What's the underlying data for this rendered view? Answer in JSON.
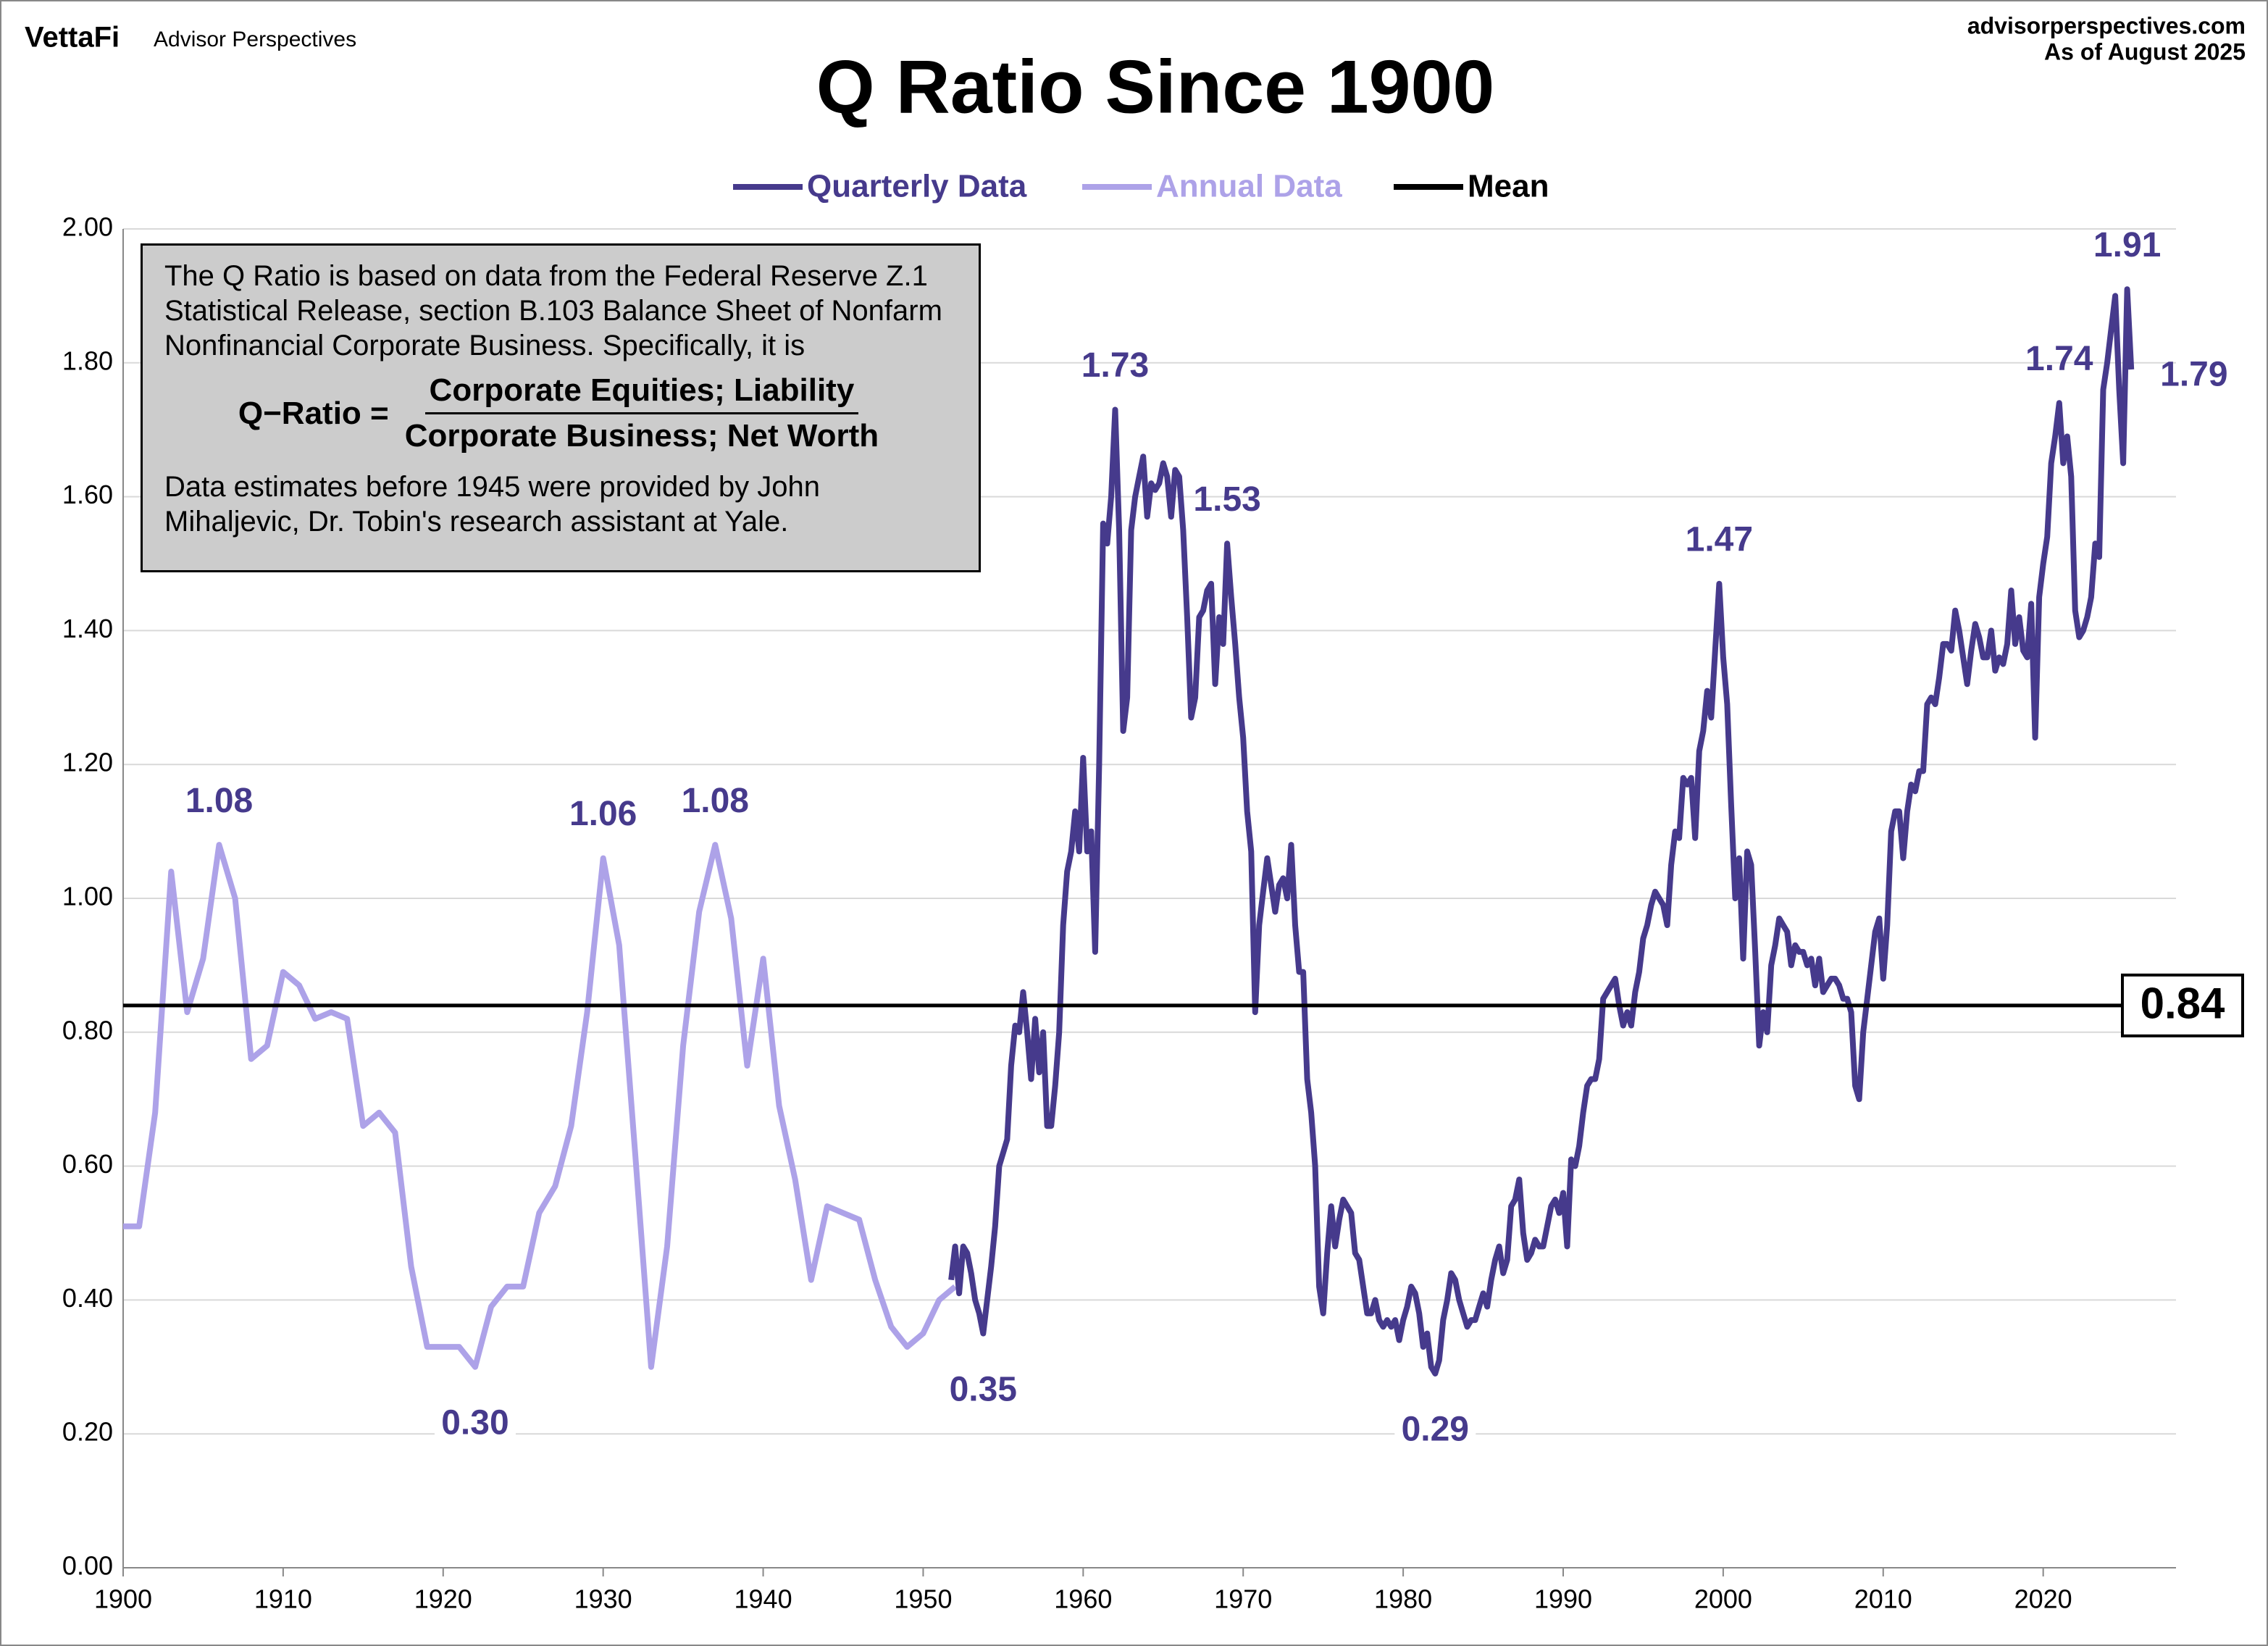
{
  "header": {
    "brand": "VettaFi",
    "brand_sub": "Advisor Perspectives",
    "site": "advisorperspectives.com",
    "as_of": "As of August 2025"
  },
  "info_box": {
    "text1": "The Q Ratio is based on data from the Federal Reserve Z.1 Statistical Release, section B.103 Balance Sheet of Nonfarm Nonfinancial Corporate Business. Specifically, it is",
    "formula_label": "Q−Ratio =",
    "numerator": "Corporate Equities; Liability",
    "denominator": "Corporate Business; Net Worth",
    "text2": "Data estimates before 1945 were provided by John Mihaljevic, Dr. Tobin's research assistant at Yale."
  },
  "chart_data": {
    "type": "line",
    "title": "Q Ratio Since 1900",
    "legend": "top",
    "xlim": [
      1900,
      2028.3
    ],
    "xticks": [
      1900,
      1910,
      1920,
      1930,
      1940,
      1950,
      1960,
      1970,
      1980,
      1990,
      2000,
      2010,
      2020
    ],
    "ylim": [
      0,
      2
    ],
    "yticks": [
      {
        "value": 0,
        "label": "0.00"
      },
      {
        "value": 0.2,
        "label": "0.20"
      },
      {
        "value": 0.4,
        "label": "0.40"
      },
      {
        "value": 0.6,
        "label": "0.60"
      },
      {
        "value": 0.8,
        "label": "0.80"
      },
      {
        "value": 1,
        "label": "1.00"
      },
      {
        "value": 1.2,
        "label": "1.20"
      },
      {
        "value": 1.4,
        "label": "1.40"
      },
      {
        "value": 1.6,
        "label": "1.60"
      },
      {
        "value": 1.8,
        "label": "1.80"
      },
      {
        "value": 2,
        "label": "2.00"
      }
    ],
    "grid": true,
    "series": [
      {
        "name": "Quarterly Data",
        "color": "#463a8c",
        "x": [
          1951.75,
          1952,
          1952.25,
          1952.5,
          1952.75,
          1953,
          1953.25,
          1953.5,
          1953.75,
          1954,
          1954.25,
          1954.5,
          1954.75,
          1955,
          1955.25,
          1955.5,
          1955.75,
          1956,
          1956.25,
          1956.5,
          1956.75,
          1957,
          1957.25,
          1957.5,
          1957.75,
          1958,
          1958.25,
          1958.5,
          1958.75,
          1959,
          1959.25,
          1959.5,
          1959.75,
          1960,
          1960.25,
          1960.5,
          1960.75,
          1961,
          1961.25,
          1961.5,
          1961.75,
          1962,
          1962.25,
          1962.5,
          1962.75,
          1963,
          1963.25,
          1963.5,
          1963.75,
          1964,
          1964.25,
          1964.5,
          1964.75,
          1965,
          1965.25,
          1965.5,
          1965.75,
          1966,
          1966.25,
          1966.5,
          1966.75,
          1967,
          1967.25,
          1967.5,
          1967.75,
          1968,
          1968.25,
          1968.5,
          1968.75,
          1969,
          1969.25,
          1969.5,
          1969.75,
          1970,
          1970.25,
          1970.5,
          1970.75,
          1971,
          1971.25,
          1971.5,
          1971.75,
          1972,
          1972.25,
          1972.5,
          1972.75,
          1973,
          1973.25,
          1973.5,
          1973.75,
          1974,
          1974.25,
          1974.5,
          1974.75,
          1975,
          1975.25,
          1975.5,
          1975.75,
          1976,
          1976.25,
          1976.5,
          1976.75,
          1977,
          1977.25,
          1977.5,
          1977.75,
          1978,
          1978.25,
          1978.5,
          1978.75,
          1979,
          1979.25,
          1979.5,
          1979.75,
          1980,
          1980.25,
          1980.5,
          1980.75,
          1981,
          1981.25,
          1981.5,
          1981.75,
          1982,
          1982.25,
          1982.5,
          1982.75,
          1983,
          1983.25,
          1983.5,
          1983.75,
          1984,
          1984.25,
          1984.5,
          1984.75,
          1985,
          1985.25,
          1985.5,
          1985.75,
          1986,
          1986.25,
          1986.5,
          1986.75,
          1987,
          1987.25,
          1987.5,
          1987.75,
          1988,
          1988.25,
          1988.5,
          1988.75,
          1989,
          1989.25,
          1989.5,
          1989.75,
          1990,
          1990.25,
          1990.5,
          1990.75,
          1991,
          1991.25,
          1991.5,
          1991.75,
          1992,
          1992.25,
          1992.5,
          1992.75,
          1993,
          1993.25,
          1993.5,
          1993.75,
          1994,
          1994.25,
          1994.5,
          1994.75,
          1995,
          1995.25,
          1995.5,
          1995.75,
          1996,
          1996.25,
          1996.5,
          1996.75,
          1997,
          1997.25,
          1997.5,
          1997.75,
          1998,
          1998.25,
          1998.5,
          1998.75,
          1999,
          1999.25,
          1999.5,
          1999.75,
          2000,
          2000.25,
          2000.5,
          2000.75,
          2001,
          2001.25,
          2001.5,
          2001.75,
          2002,
          2002.25,
          2002.5,
          2002.75,
          2003,
          2003.25,
          2003.5,
          2003.75,
          2004,
          2004.25,
          2004.5,
          2004.75,
          2005,
          2005.25,
          2005.5,
          2005.75,
          2006,
          2006.25,
          2006.5,
          2006.75,
          2007,
          2007.25,
          2007.5,
          2007.75,
          2008,
          2008.25,
          2008.5,
          2008.75,
          2009,
          2009.25,
          2009.5,
          2009.75,
          2010,
          2010.25,
          2010.5,
          2010.75,
          2011,
          2011.25,
          2011.5,
          2011.75,
          2012,
          2012.25,
          2012.5,
          2012.75,
          2013,
          2013.25,
          2013.5,
          2013.75,
          2014,
          2014.25,
          2014.5,
          2014.75,
          2015,
          2015.25,
          2015.5,
          2015.75,
          2016,
          2016.25,
          2016.5,
          2016.75,
          2017,
          2017.25,
          2017.5,
          2017.75,
          2018,
          2018.25,
          2018.5,
          2018.75,
          2019,
          2019.25,
          2019.5,
          2019.75,
          2020,
          2020.25,
          2020.5,
          2020.75,
          2021,
          2021.25,
          2021.5,
          2021.75,
          2022,
          2022.25,
          2022.5,
          2022.75,
          2023,
          2023.25,
          2023.5,
          2023.75,
          2024,
          2024.25,
          2024.5,
          2024.75,
          2025,
          2025.25,
          2025.5
        ],
        "values": [
          0.43,
          0.48,
          0.41,
          0.48,
          0.47,
          0.44,
          0.4,
          0.38,
          0.35,
          0.4,
          0.45,
          0.51,
          0.6,
          0.62,
          0.64,
          0.75,
          0.81,
          0.8,
          0.86,
          0.8,
          0.73,
          0.82,
          0.74,
          0.8,
          0.66,
          0.66,
          0.72,
          0.8,
          0.96,
          1.04,
          1.07,
          1.13,
          1.07,
          1.21,
          1.07,
          1.1,
          0.92,
          1.2,
          1.56,
          1.53,
          1.6,
          1.73,
          1.55,
          1.25,
          1.3,
          1.55,
          1.6,
          1.63,
          1.66,
          1.57,
          1.62,
          1.61,
          1.62,
          1.65,
          1.63,
          1.57,
          1.64,
          1.63,
          1.55,
          1.42,
          1.27,
          1.3,
          1.42,
          1.43,
          1.46,
          1.47,
          1.32,
          1.42,
          1.38,
          1.53,
          1.45,
          1.38,
          1.3,
          1.24,
          1.13,
          1.07,
          0.83,
          0.96,
          1.01,
          1.06,
          1.02,
          0.98,
          1.02,
          1.03,
          1.0,
          1.08,
          0.96,
          0.89,
          0.89,
          0.73,
          0.68,
          0.6,
          0.42,
          0.38,
          0.47,
          0.54,
          0.48,
          0.52,
          0.55,
          0.54,
          0.53,
          0.47,
          0.46,
          0.42,
          0.38,
          0.38,
          0.4,
          0.37,
          0.36,
          0.37,
          0.36,
          0.37,
          0.34,
          0.37,
          0.39,
          0.42,
          0.41,
          0.38,
          0.33,
          0.35,
          0.3,
          0.29,
          0.31,
          0.37,
          0.4,
          0.44,
          0.43,
          0.4,
          0.38,
          0.36,
          0.37,
          0.37,
          0.39,
          0.41,
          0.39,
          0.43,
          0.46,
          0.48,
          0.44,
          0.46,
          0.54,
          0.55,
          0.58,
          0.5,
          0.46,
          0.47,
          0.49,
          0.48,
          0.48,
          0.51,
          0.54,
          0.55,
          0.53,
          0.56,
          0.48,
          0.61,
          0.6,
          0.63,
          0.68,
          0.72,
          0.73,
          0.73,
          0.76,
          0.85,
          0.86,
          0.87,
          0.88,
          0.84,
          0.81,
          0.83,
          0.81,
          0.86,
          0.89,
          0.94,
          0.96,
          0.99,
          1.01,
          1.0,
          0.99,
          0.96,
          1.05,
          1.1,
          1.09,
          1.18,
          1.17,
          1.18,
          1.09,
          1.22,
          1.25,
          1.31,
          1.27,
          1.37,
          1.47,
          1.36,
          1.29,
          1.14,
          1.0,
          1.06,
          0.91,
          1.07,
          1.05,
          0.92,
          0.78,
          0.83,
          0.8,
          0.9,
          0.93,
          0.97,
          0.96,
          0.95,
          0.9,
          0.93,
          0.92,
          0.92,
          0.9,
          0.91,
          0.87,
          0.91,
          0.86,
          0.87,
          0.88,
          0.88,
          0.87,
          0.85,
          0.85,
          0.83,
          0.72,
          0.7,
          0.8,
          0.85,
          0.9,
          0.95,
          0.97,
          0.88,
          0.96,
          1.1,
          1.13,
          1.13,
          1.06,
          1.13,
          1.17,
          1.16,
          1.19,
          1.19,
          1.29,
          1.3,
          1.29,
          1.33,
          1.38,
          1.38,
          1.37,
          1.43,
          1.4,
          1.36,
          1.32,
          1.37,
          1.41,
          1.39,
          1.36,
          1.36,
          1.4,
          1.34,
          1.36,
          1.35,
          1.38,
          1.46,
          1.38,
          1.42,
          1.37,
          1.36,
          1.44,
          1.24,
          1.45,
          1.5,
          1.54,
          1.65,
          1.69,
          1.74,
          1.65,
          1.69,
          1.63,
          1.43,
          1.39,
          1.4,
          1.42,
          1.45,
          1.53,
          1.51,
          1.76,
          1.8,
          1.85,
          1.9,
          1.76,
          1.65,
          1.91,
          1.79
        ]
      },
      {
        "name": "Annual Data",
        "color": "#ada2e8",
        "x": [
          1900,
          1901,
          1902,
          1903,
          1904,
          1905,
          1906,
          1907,
          1908,
          1909,
          1910,
          1911,
          1912,
          1913,
          1914,
          1915,
          1916,
          1917,
          1918,
          1919,
          1920,
          1921,
          1922,
          1923,
          1924,
          1925,
          1926,
          1927,
          1928,
          1929,
          1930,
          1931,
          1932,
          1933,
          1934,
          1935,
          1936,
          1937,
          1938,
          1939,
          1940,
          1941,
          1942,
          1943,
          1944,
          1945,
          1946,
          1947,
          1948,
          1949,
          1950,
          1951,
          1952
        ],
        "values": [
          0.51,
          0.51,
          0.68,
          1.04,
          0.83,
          0.91,
          1.08,
          1.0,
          0.76,
          0.78,
          0.89,
          0.87,
          0.82,
          0.83,
          0.82,
          0.66,
          0.68,
          0.65,
          0.45,
          0.33,
          0.33,
          0.33,
          0.3,
          0.39,
          0.42,
          0.42,
          0.53,
          0.57,
          0.66,
          0.83,
          1.06,
          0.93,
          0.62,
          0.3,
          0.48,
          0.78,
          0.98,
          1.08,
          0.97,
          0.75,
          0.91,
          0.69,
          0.58,
          0.43,
          0.54,
          0.53,
          0.52,
          0.43,
          0.36,
          0.33,
          0.35,
          0.4,
          0.42
        ]
      }
    ],
    "mean": {
      "name": "Mean",
      "value": 0.84,
      "color": "#000000"
    },
    "annotations": [
      {
        "label": "1.08",
        "x": 1906,
        "value": 1.08
      },
      {
        "label": "0.30",
        "x": 1922,
        "value": 0.3
      },
      {
        "label": "1.06",
        "x": 1930,
        "value": 1.06
      },
      {
        "label": "1.08",
        "x": 1937,
        "value": 1.08
      },
      {
        "label": "0.35",
        "x": 1953.75,
        "value": 0.35
      },
      {
        "label": "1.73",
        "x": 1962,
        "value": 1.73
      },
      {
        "label": "1.53",
        "x": 1969,
        "value": 1.53
      },
      {
        "label": "0.29",
        "x": 1982,
        "value": 0.29
      },
      {
        "label": "1.47",
        "x": 1999.75,
        "value": 1.47
      },
      {
        "label": "1.74",
        "x": 2021,
        "value": 1.74
      },
      {
        "label": "1.91",
        "x": 2025.25,
        "value": 1.91
      },
      {
        "label": "1.79",
        "x": 2025.5,
        "value": 1.79
      }
    ]
  }
}
